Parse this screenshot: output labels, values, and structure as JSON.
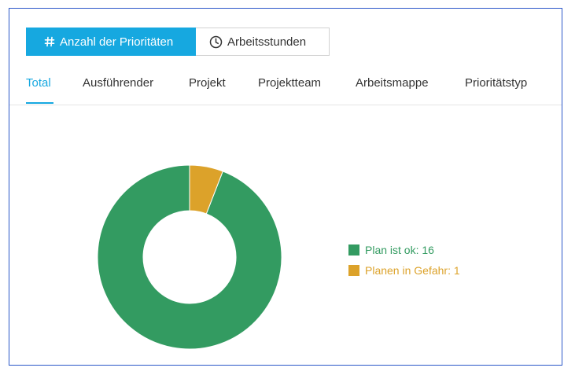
{
  "toggle": {
    "count_label": "Anzahl der Prioritäten",
    "hours_label": "Arbeitsstunden"
  },
  "tabs": [
    {
      "label": "Total",
      "active": true
    },
    {
      "label": "Ausführender",
      "active": false
    },
    {
      "label": "Projekt",
      "active": false
    },
    {
      "label": "Projektteam",
      "active": false
    },
    {
      "label": "Arbeitsmappe",
      "active": false
    },
    {
      "label": "Prioritätstyp",
      "active": false
    }
  ],
  "colors": {
    "accent": "#16a8e0",
    "ok": "#339b61",
    "risk": "#dca22a"
  },
  "chart_data": {
    "type": "pie",
    "donut": true,
    "slices": [
      {
        "name": "Plan ist ok",
        "value": 16,
        "color": "#339b61"
      },
      {
        "name": "Planen in Gefahr",
        "value": 1,
        "color": "#dca22a"
      }
    ]
  },
  "legend": [
    {
      "label": "Plan ist ok: 16",
      "color": "#339b61"
    },
    {
      "label": "Planen in Gefahr: 1",
      "color": "#dca22a"
    }
  ]
}
